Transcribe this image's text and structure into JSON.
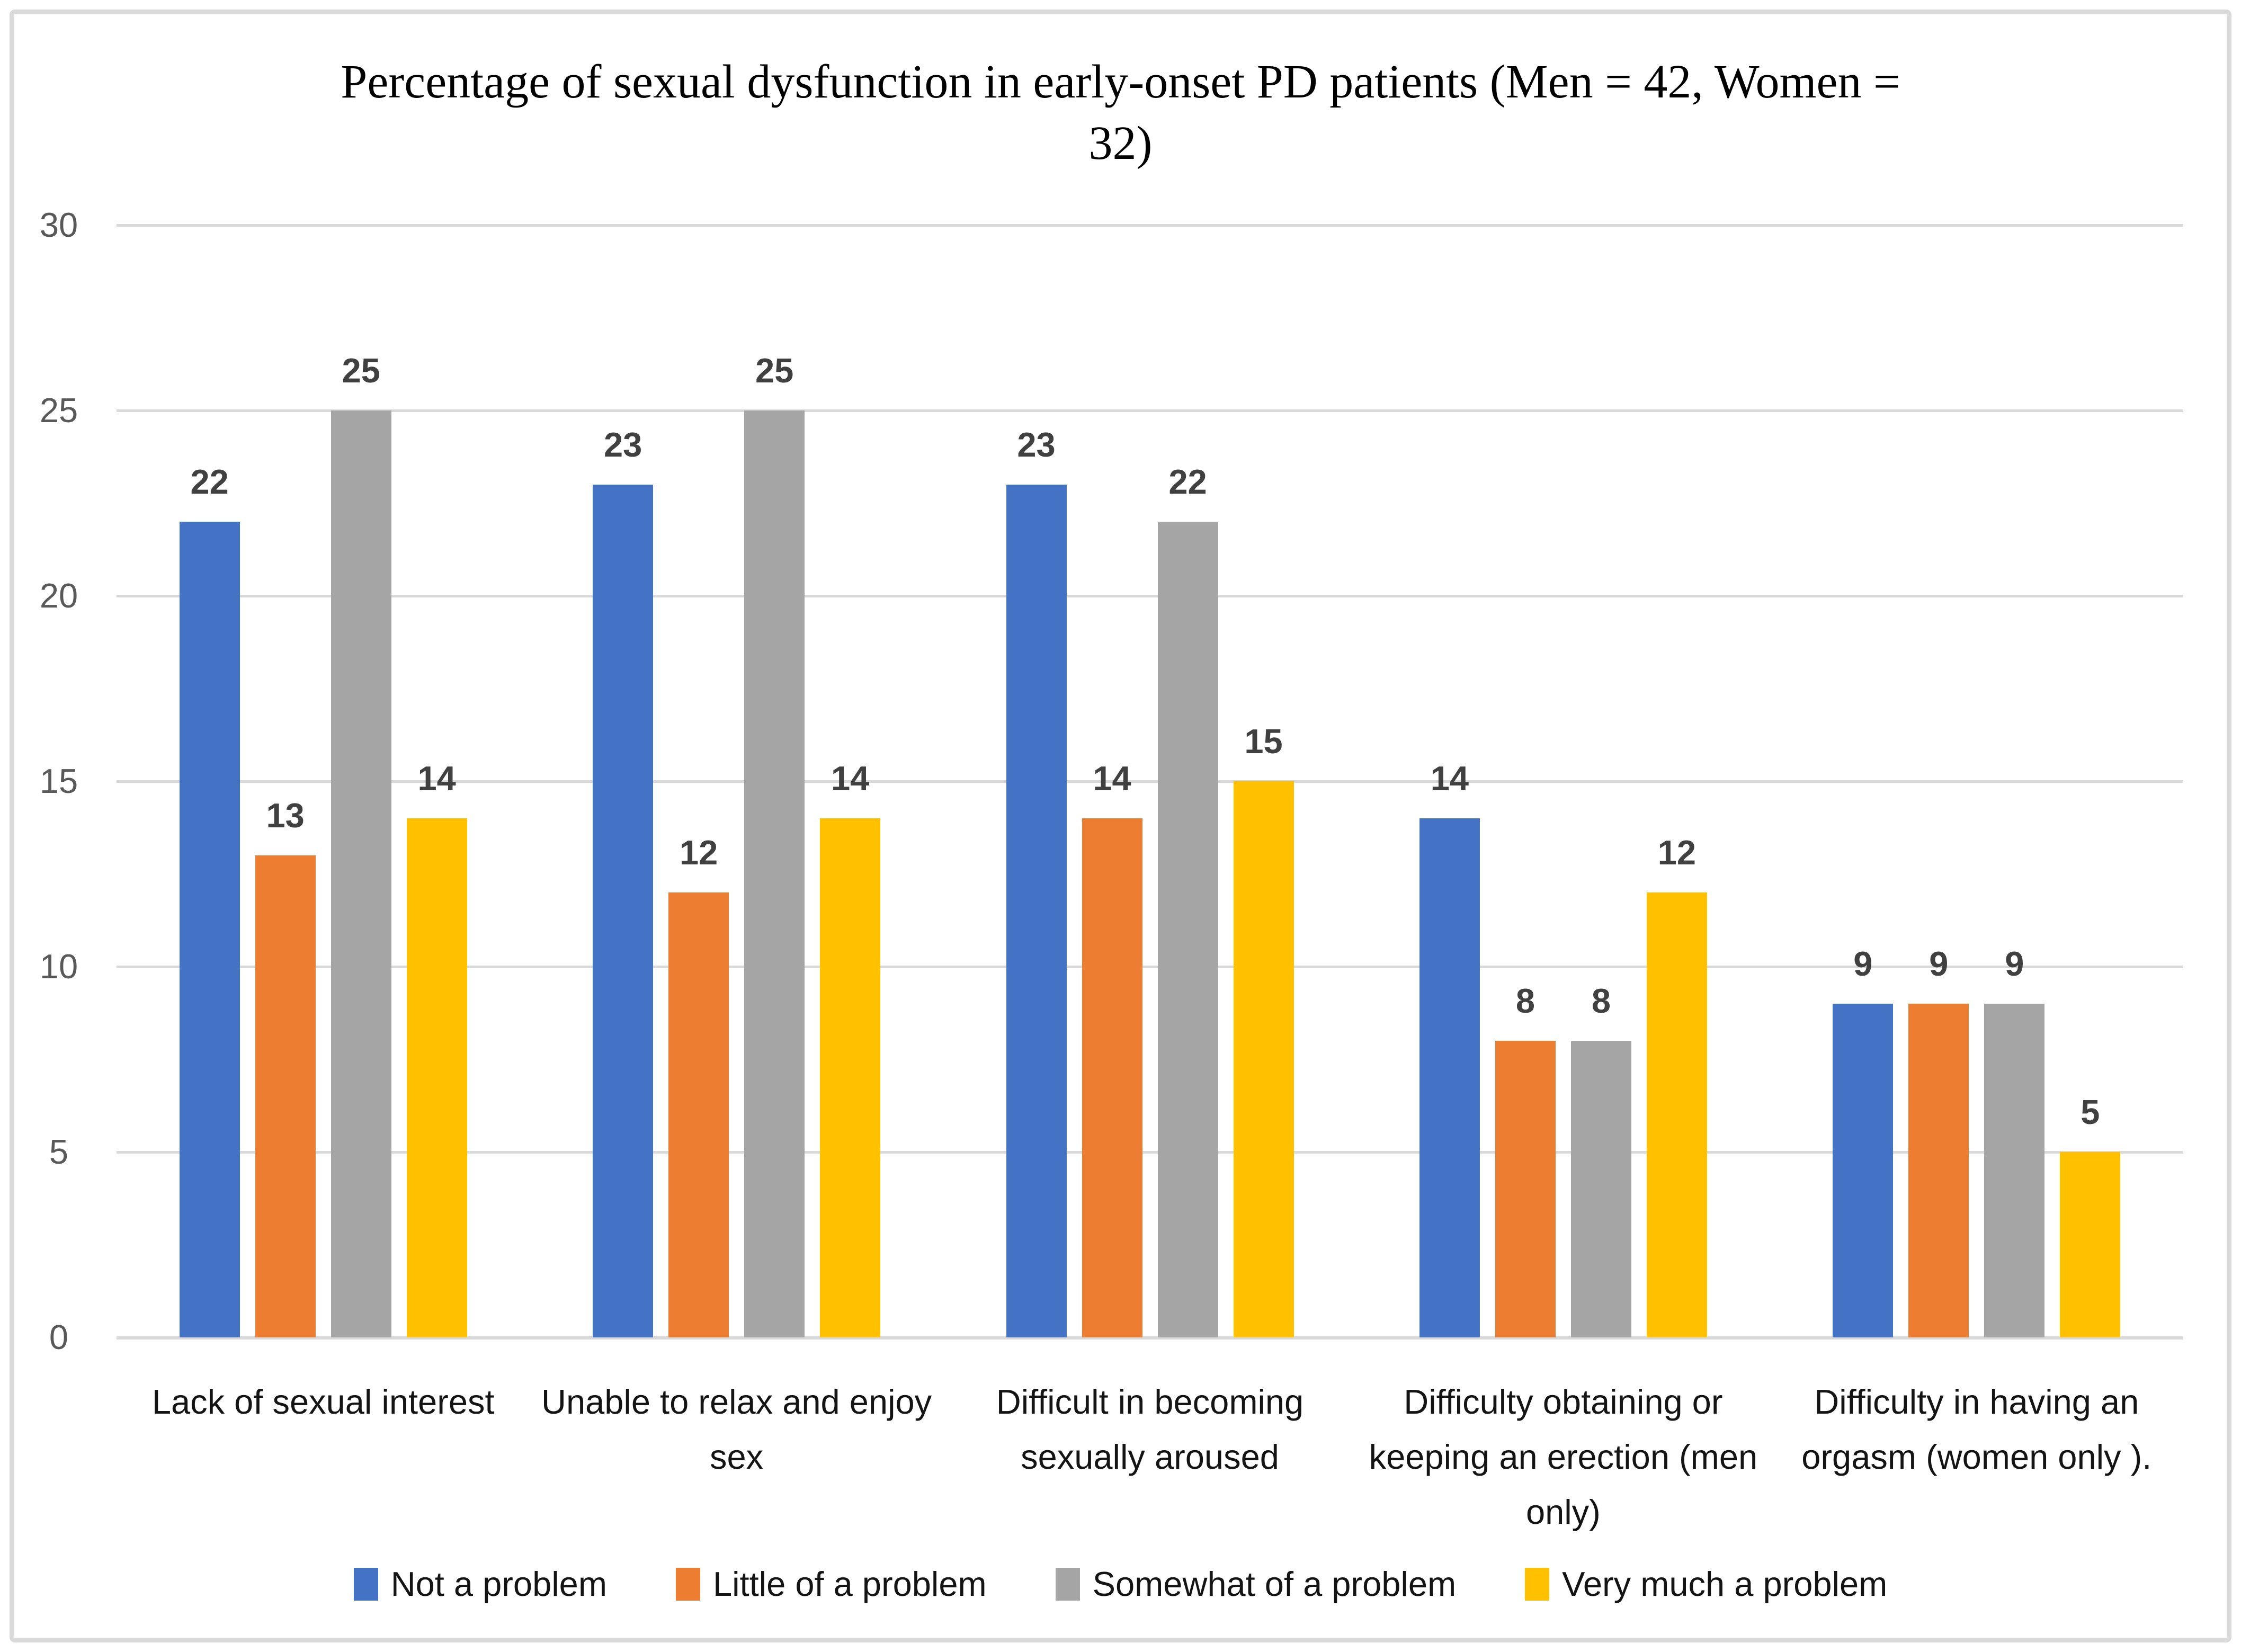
{
  "figure": {
    "title_lines": [
      "Percentage of sexual dysfunction in early-onset PD patients (Men = 42, Women =",
      "32)"
    ]
  },
  "chart_data": {
    "type": "bar",
    "title": "Percentage of sexual dysfunction in early-onset PD patients (Men = 42, Women = 32)",
    "categories": [
      "Lack of sexual interest",
      "Unable to relax and enjoy sex",
      "Difficult in becoming sexually aroused",
      "Difficulty obtaining or keeping an erection (men only)",
      "Difficulty in having an orgasm (women only )."
    ],
    "categories_wrapped": [
      [
        "Lack of sexual interest"
      ],
      [
        "Unable to relax and enjoy",
        "sex"
      ],
      [
        "Difficult in becoming",
        "sexually aroused"
      ],
      [
        "Difficulty obtaining or",
        "keeping an erection (men",
        "only)"
      ],
      [
        "Difficulty in having an",
        "orgasm (women only )."
      ]
    ],
    "series": [
      {
        "name": "Not a problem",
        "color": "#4472C4",
        "values": [
          22,
          23,
          23,
          14,
          9
        ]
      },
      {
        "name": "Little of a problem",
        "color": "#ED7D31",
        "values": [
          13,
          12,
          14,
          8,
          9
        ]
      },
      {
        "name": "Somewhat of a problem",
        "color": "#A5A5A5",
        "values": [
          25,
          25,
          22,
          8,
          9
        ]
      },
      {
        "name": "Very much a problem",
        "color": "#FFC000",
        "values": [
          14,
          14,
          15,
          12,
          5
        ]
      }
    ],
    "ylim": [
      0,
      30
    ],
    "yticks": [
      0,
      5,
      10,
      15,
      20,
      25,
      30
    ],
    "grid": true,
    "data_labels": true,
    "legend_position": "bottom",
    "colors": {
      "gridline": "#D9D9D9",
      "figure_border": "#D9D9D9",
      "axis_tick_text": "#595959",
      "data_label_text": "#404040",
      "category_text": "#141414",
      "legend_text": "#141414",
      "title_text": "#000000",
      "background": "#FFFFFF"
    }
  }
}
